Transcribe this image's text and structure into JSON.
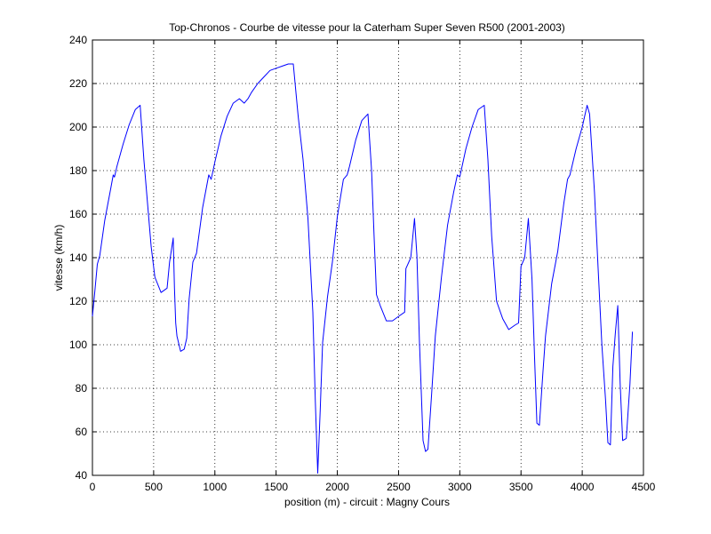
{
  "chart_data": {
    "type": "line",
    "title": "Top-Chronos - Courbe de vitesse pour la Caterham Super Seven R500 (2001-2003)",
    "xlabel": "position (m) - circuit : Magny Cours",
    "ylabel": "vitesse (km/h)",
    "xlim": [
      0,
      4500
    ],
    "ylim": [
      40,
      240
    ],
    "xticks": [
      0,
      500,
      1000,
      1500,
      2000,
      2500,
      3000,
      3500,
      4000,
      4500
    ],
    "yticks": [
      40,
      60,
      80,
      100,
      120,
      140,
      160,
      180,
      200,
      220,
      240
    ],
    "grid": true,
    "series": [
      {
        "color": "#0000ff",
        "x": [
          0,
          20,
          40,
          60,
          100,
          150,
          170,
          180,
          200,
          250,
          300,
          350,
          390,
          420,
          450,
          480,
          510,
          560,
          610,
          630,
          660,
          670,
          680,
          690,
          720,
          750,
          770,
          790,
          820,
          850,
          900,
          950,
          970,
          1000,
          1050,
          1100,
          1150,
          1200,
          1240,
          1270,
          1300,
          1350,
          1400,
          1450,
          1500,
          1550,
          1600,
          1640,
          1680,
          1720,
          1760,
          1800,
          1820,
          1840,
          1860,
          1880,
          1920,
          1960,
          2000,
          2050,
          2080,
          2100,
          2150,
          2200,
          2250,
          2280,
          2300,
          2320,
          2350,
          2400,
          2450,
          2500,
          2550,
          2560,
          2600,
          2630,
          2650,
          2670,
          2700,
          2720,
          2740,
          2770,
          2800,
          2850,
          2900,
          2950,
          2980,
          3000,
          3050,
          3100,
          3150,
          3200,
          3230,
          3260,
          3300,
          3350,
          3400,
          3450,
          3480,
          3500,
          3530,
          3560,
          3590,
          3610,
          3630,
          3650,
          3680,
          3700,
          3750,
          3800,
          3850,
          3880,
          3900,
          3950,
          4000,
          4040,
          4060,
          4100,
          4130,
          4160,
          4190,
          4210,
          4230,
          4250,
          4270,
          4290,
          4310,
          4330,
          4360,
          4390,
          4410
        ],
        "y": [
          113,
          125,
          137,
          141,
          157,
          172,
          178,
          177,
          182,
          192,
          201,
          208,
          210,
          185,
          165,
          145,
          131,
          124,
          126,
          138,
          149,
          126,
          110,
          104,
          97,
          98,
          103,
          121,
          138,
          142,
          163,
          178,
          176,
          184,
          196,
          205,
          211,
          213,
          211,
          213,
          216,
          220,
          223,
          226,
          227,
          228,
          229,
          229,
          205,
          185,
          158,
          115,
          74,
          41,
          70,
          101,
          122,
          138,
          159,
          176,
          178,
          182,
          194,
          203,
          206,
          180,
          150,
          123,
          118,
          111,
          111,
          113,
          115,
          135,
          140,
          158,
          141,
          102,
          56,
          51,
          52,
          77,
          104,
          131,
          155,
          170,
          178,
          177,
          190,
          200,
          208,
          210,
          185,
          150,
          120,
          112,
          107,
          109,
          110,
          136,
          140,
          158,
          130,
          95,
          64,
          63,
          88,
          104,
          128,
          143,
          165,
          176,
          178,
          190,
          200,
          210,
          206,
          170,
          135,
          100,
          75,
          55,
          54,
          90,
          105,
          118,
          82,
          56,
          57,
          82,
          106
        ]
      }
    ]
  }
}
